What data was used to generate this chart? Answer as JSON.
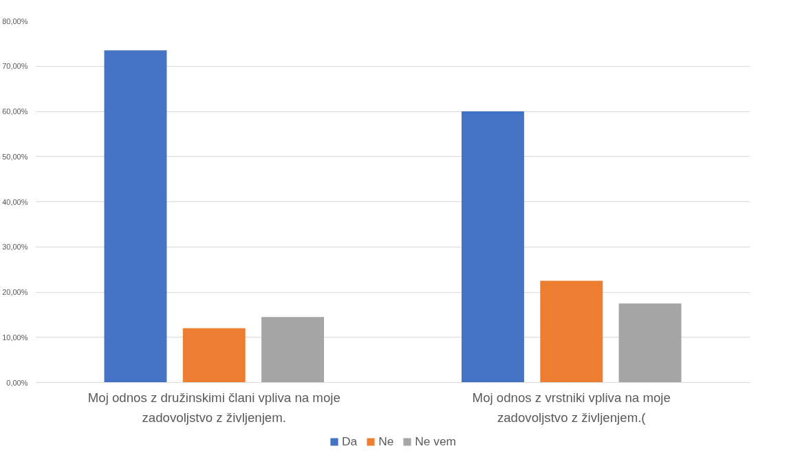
{
  "chart_data": {
    "type": "bar",
    "categories": [
      "Moj odnos z družinskimi člani vpliva na moje zadovoljstvo z življenjem.",
      "Moj odnos z vrstniki vpliva na moje zadovoljstvo z življenjem.("
    ],
    "series": [
      {
        "name": "Da",
        "color": "#4472c4",
        "values": [
          73.5,
          60
        ]
      },
      {
        "name": "Ne",
        "color": "#ed7d31",
        "values": [
          12,
          22.5
        ]
      },
      {
        "name": "Ne vem",
        "color": "#a5a5a5",
        "values": [
          14.5,
          17.5
        ]
      }
    ],
    "ylim": [
      0,
      80
    ],
    "yticks": [
      {
        "value": 0,
        "label": "0,00%"
      },
      {
        "value": 10,
        "label": "10,00%"
      },
      {
        "value": 20,
        "label": "20,00%"
      },
      {
        "value": 30,
        "label": "30,00%"
      },
      {
        "value": 40,
        "label": "40,00%"
      },
      {
        "value": 50,
        "label": "50,00%"
      },
      {
        "value": 60,
        "label": "60,00%"
      },
      {
        "value": 70,
        "label": "70,00%"
      },
      {
        "value": 80,
        "label": "80,00%"
      }
    ],
    "grid": "y",
    "legend": "bottom"
  }
}
